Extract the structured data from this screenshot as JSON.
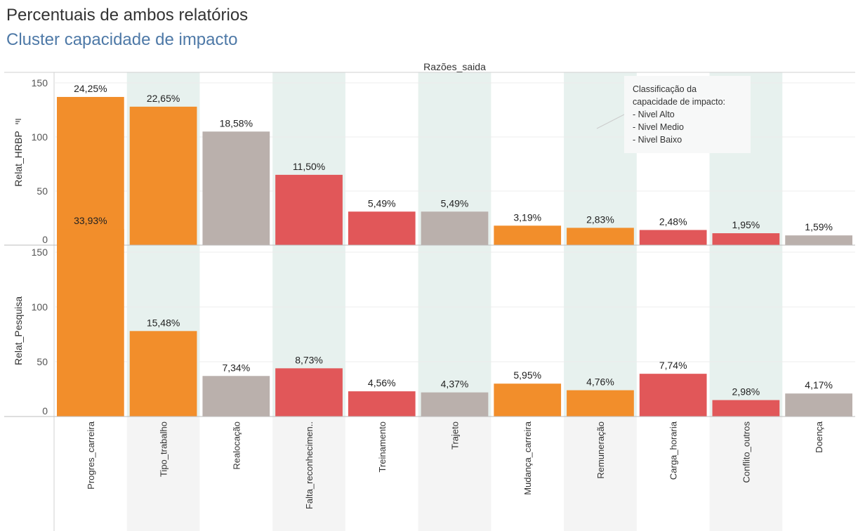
{
  "title": "Percentuais de ambos relatórios",
  "subtitle": "Cluster capacidade de impacto",
  "colors": {
    "alto": "#f28e2b",
    "medio": "#bab0ac",
    "baixo": "#e15759",
    "band": "#e7f1ee",
    "catband": "#f4f4f4",
    "subtitle": "#4e79a7"
  },
  "annotation": {
    "lines": [
      "Classificação da",
      "capacidade de impacto:",
      "- Nivel Alto",
      "- Nivel Medio",
      "- Nivel Baixo"
    ]
  },
  "chart_data": {
    "type": "bar",
    "column_header": "Razões_saida",
    "categories": [
      "Progres_carreira",
      "Tipo_trabalho",
      "Realocação",
      "Falta_reconhecimen..",
      "Treinamento",
      "Trajeto",
      "Mudança_carreira",
      "Remuneração",
      "Carga_horaria",
      "Conflito_outros",
      "Doença"
    ],
    "impact_level": [
      "alto",
      "alto",
      "medio",
      "baixo",
      "baixo",
      "medio",
      "alto",
      "alto",
      "baixo",
      "baixo",
      "medio"
    ],
    "panels": [
      {
        "ylabel": "Relat_HRBP",
        "ylim": [
          0,
          150
        ],
        "yticks": [
          0,
          50,
          100,
          150
        ],
        "values": [
          137,
          128,
          105,
          65,
          31,
          31,
          18,
          16,
          14,
          11,
          9
        ],
        "labels": [
          "24,25%",
          "22,65%",
          "18,58%",
          "11,50%",
          "5,49%",
          "5,49%",
          "3,19%",
          "2,83%",
          "2,48%",
          "1,95%",
          "1,59%"
        ]
      },
      {
        "ylabel": "Relat_Pesquisa",
        "ylim": [
          0,
          175
        ],
        "yticks": [
          0,
          50,
          100,
          150
        ],
        "values": [
          171,
          78,
          37,
          44,
          23,
          22,
          30,
          24,
          39,
          15,
          21
        ],
        "labels": [
          "33,93%",
          "15,48%",
          "7,34%",
          "8,73%",
          "4,56%",
          "4,37%",
          "5,95%",
          "4,76%",
          "7,74%",
          "2,98%",
          "4,17%"
        ]
      }
    ],
    "grid": true
  }
}
